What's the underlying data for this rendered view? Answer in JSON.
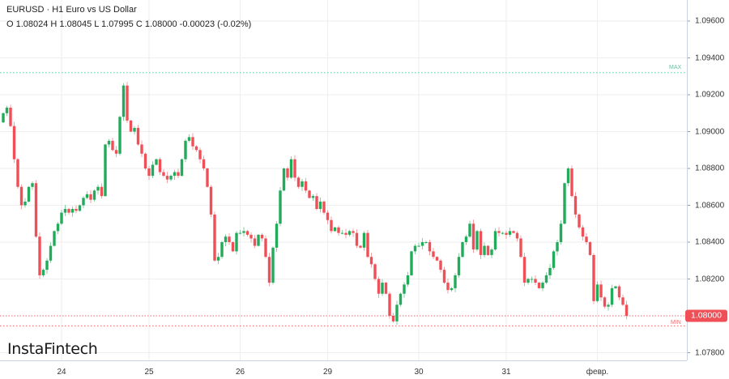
{
  "header": {
    "title": "EURUSD · H1 Euro vs US Dollar",
    "ohlc": "O 1.08024 H 1.08045 L 1.07995 C 1.08000  -0.00023 (-0.02%)"
  },
  "logo": "InstaFintech",
  "colors": {
    "up": "#22ab5a",
    "down": "#ef5057",
    "max_line": "#5fc2a6",
    "min_line": "#ef6a70",
    "grid": "#eeeeee"
  },
  "chart_data": {
    "type": "candlestick",
    "symbol": "EURUSD",
    "timeframe": "H1",
    "ylim": [
      1.0774,
      1.0972
    ],
    "y_ticks": [
      "1.09600",
      "1.09400",
      "1.09200",
      "1.09000",
      "1.08800",
      "1.08600",
      "1.08400",
      "1.08200",
      "1.07800"
    ],
    "x_ticks": [
      {
        "label": "24",
        "index": 16
      },
      {
        "label": "25",
        "index": 40
      },
      {
        "label": "26",
        "index": 65
      },
      {
        "label": "29",
        "index": 89
      },
      {
        "label": "30",
        "index": 114
      },
      {
        "label": "31",
        "index": 138
      },
      {
        "label": "февр.",
        "index": 163
      }
    ],
    "current_price": "1.08000",
    "max": {
      "label": "MAX",
      "value": 1.0932
    },
    "min": {
      "label": "MIN",
      "value": 1.07945
    },
    "first_open": 1.0905,
    "closes": [
      1.091,
      1.0913,
      1.0903,
      1.0885,
      1.087,
      1.086,
      1.0862,
      1.087,
      1.0872,
      1.0843,
      1.0822,
      1.0825,
      1.083,
      1.0838,
      1.0846,
      1.085,
      1.0856,
      1.0858,
      1.0856,
      1.0858,
      1.0857,
      1.086,
      1.0864,
      1.0866,
      1.0863,
      1.0868,
      1.087,
      1.0865,
      1.0893,
      1.0895,
      1.089,
      1.0888,
      1.0908,
      1.0925,
      1.0906,
      1.09,
      1.0902,
      1.0893,
      1.0888,
      1.088,
      1.0876,
      1.0882,
      1.0885,
      1.0878,
      1.0876,
      1.0874,
      1.0876,
      1.0878,
      1.0876,
      1.0885,
      1.0895,
      1.0897,
      1.0892,
      1.089,
      1.0885,
      1.088,
      1.087,
      1.0855,
      1.083,
      1.0832,
      1.084,
      1.0843,
      1.084,
      1.0835,
      1.0845,
      1.0845,
      1.0846,
      1.0844,
      1.0842,
      1.0838,
      1.0844,
      1.0842,
      1.0832,
      1.0818,
      1.0837,
      1.085,
      1.0868,
      1.088,
      1.0875,
      1.0885,
      1.0875,
      1.087,
      1.0873,
      1.0868,
      1.0864,
      1.0865,
      1.0858,
      1.0862,
      1.0856,
      1.0852,
      1.0846,
      1.0848,
      1.0845,
      1.0845,
      1.0844,
      1.0846,
      1.0845,
      1.0838,
      1.0837,
      1.0845,
      1.0832,
      1.0828,
      1.082,
      1.0812,
      1.0818,
      1.0812,
      1.08,
      1.0797,
      1.0806,
      1.0812,
      1.0817,
      1.0822,
      1.0835,
      1.0838,
      1.0838,
      1.084,
      1.084,
      1.0835,
      1.0832,
      1.083,
      1.0825,
      1.0818,
      1.0814,
      1.0815,
      1.0822,
      1.0832,
      1.084,
      1.0843,
      1.085,
      1.0836,
      1.0846,
      1.0833,
      1.0838,
      1.0833,
      1.0836,
      1.0846,
      1.0845,
      1.0845,
      1.0844,
      1.0846,
      1.0845,
      1.0842,
      1.0832,
      1.0818,
      1.082,
      1.082,
      1.0818,
      1.0815,
      1.0818,
      1.0822,
      1.0826,
      1.0835,
      1.084,
      1.085,
      1.0872,
      1.088,
      1.0865,
      1.0855,
      1.0848,
      1.0843,
      1.084,
      1.0833,
      1.0808,
      1.0817,
      1.081,
      1.0805,
      1.0806,
      1.0815,
      1.0816,
      1.081,
      1.0806,
      1.08
    ]
  }
}
